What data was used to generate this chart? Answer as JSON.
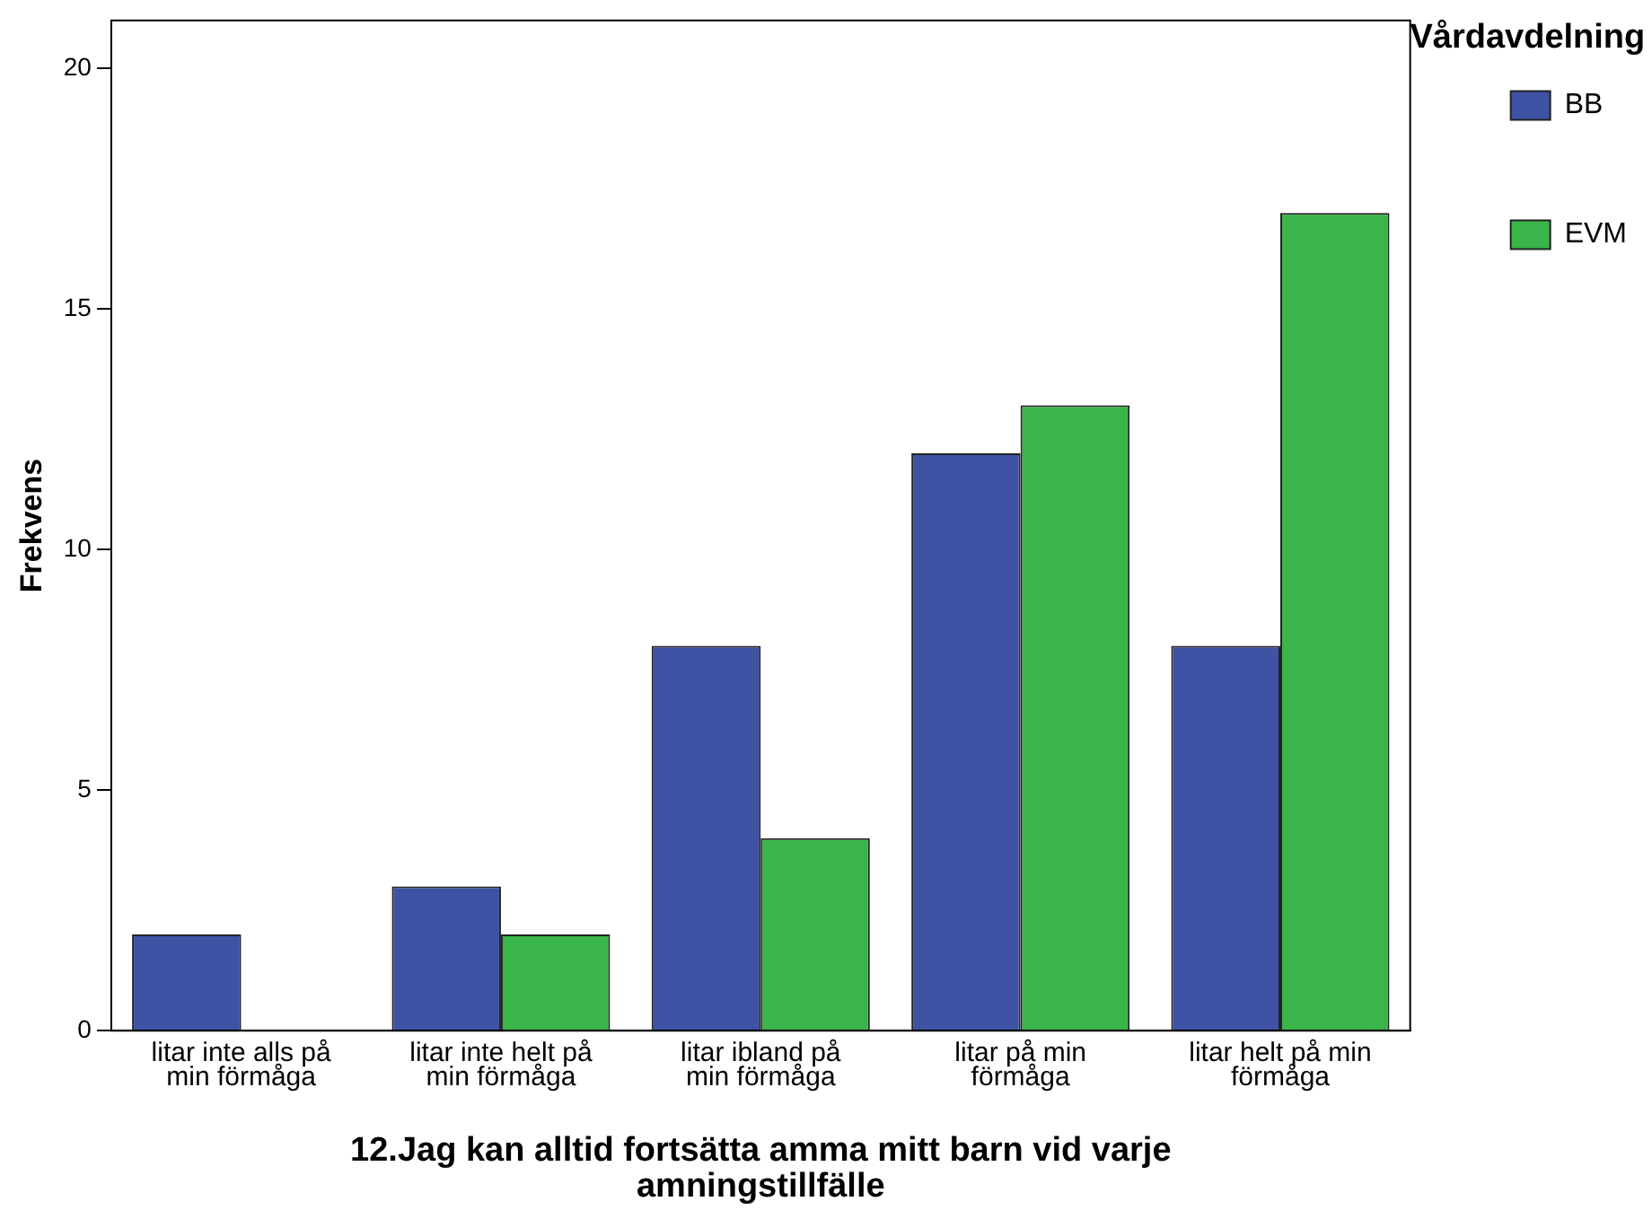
{
  "chart_data": {
    "type": "bar",
    "xlabel": "12.Jag kan alltid fortsätta amma mitt barn vid varje amningstillfälle",
    "ylabel": "Frekvens",
    "legend_title": "Vårdavdelning",
    "legend": "top right",
    "categories": [
      "litar inte alls på min förmåga",
      "litar inte helt på min förmåga",
      "litar ibland på min förmåga",
      "litar på min förmåga",
      "litar helt på min förmåga"
    ],
    "series": [
      {
        "name": "BB",
        "color": "#3e53a4",
        "values": [
          2,
          3,
          8,
          12,
          8
        ]
      },
      {
        "name": "EVM",
        "color": "#3ab54a",
        "values": [
          0,
          2,
          4,
          13,
          17
        ]
      }
    ],
    "ylim": [
      0,
      21
    ],
    "yticks": [
      0,
      5,
      10,
      15,
      20
    ],
    "grid": false
  }
}
